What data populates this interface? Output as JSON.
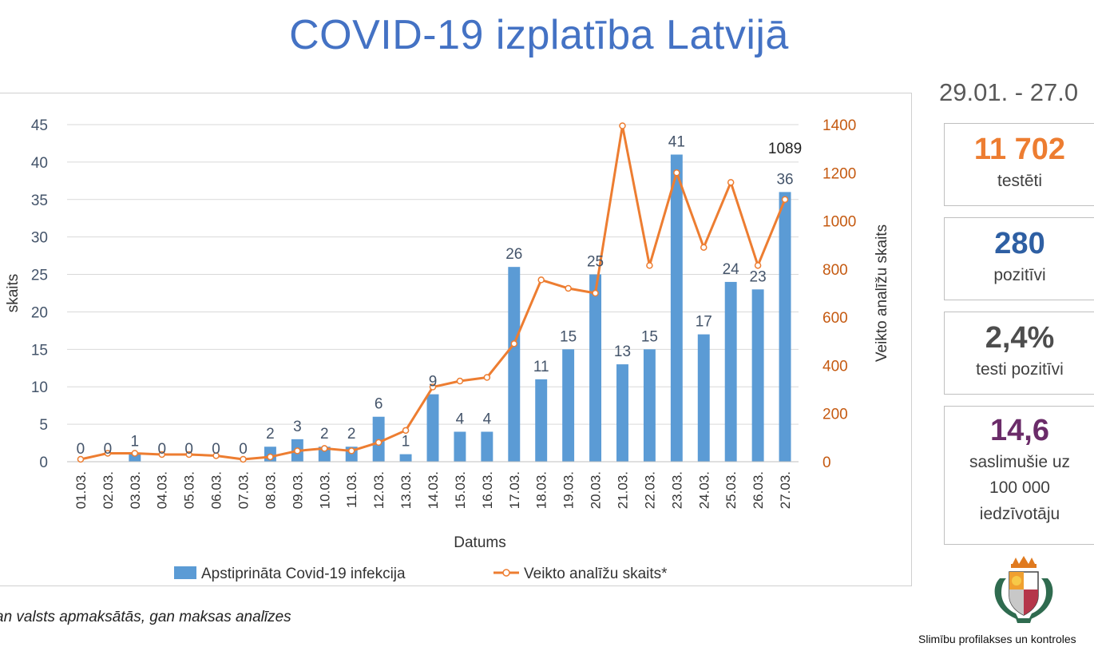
{
  "header": {
    "title": "COVID-19 izplatība Latvijā"
  },
  "footnote": "an valsts apmaksātās, gan maksas analīzes",
  "side_panel": {
    "date_range": "29.01. - 27.0",
    "stats": [
      {
        "value": "11 702",
        "label_lines": [
          "testēti"
        ],
        "color": "#ed7d31"
      },
      {
        "value": "280",
        "label_lines": [
          "pozitīvi"
        ],
        "color": "#2e5fa3"
      },
      {
        "value": "2,4%",
        "label_lines": [
          "testi pozitīvi"
        ],
        "color": "#4d4d4d"
      },
      {
        "value": "14,6",
        "label_lines": [
          "saslimušie uz",
          "100 000",
          "iedzīvotāju"
        ],
        "color": "#6b2c69"
      }
    ],
    "agency": "Slimību profilakses un kontroles"
  },
  "colors": {
    "bar": "#5b9bd5",
    "line": "#ed7d31",
    "title": "#4472c4",
    "axis_left": "#44546a",
    "axis_right": "#c55a11"
  },
  "chart_data": {
    "type": "bar",
    "categories": [
      "01.03.",
      "02.03.",
      "03.03.",
      "04.03.",
      "05.03.",
      "06.03.",
      "07.03.",
      "08.03.",
      "09.03.",
      "10.03.",
      "11.03.",
      "12.03.",
      "13.03.",
      "14.03.",
      "15.03.",
      "16.03.",
      "17.03.",
      "18.03.",
      "19.03.",
      "20.03.",
      "21.03.",
      "22.03.",
      "23.03.",
      "24.03.",
      "25.03.",
      "26.03.",
      "27.03."
    ],
    "series": [
      {
        "name": "Apstiprināta Covid-19 infekcija",
        "type": "bar",
        "axis": "left",
        "values": [
          0,
          0,
          1,
          0,
          0,
          0,
          0,
          2,
          3,
          2,
          2,
          6,
          1,
          9,
          4,
          4,
          26,
          11,
          15,
          25,
          13,
          15,
          41,
          17,
          24,
          23,
          36
        ],
        "data_labels": [
          "0",
          "0",
          "1",
          "0",
          "0",
          "0",
          "0",
          "2",
          "3",
          "2",
          "2",
          "6",
          "1",
          "9",
          "4",
          "4",
          "26",
          "11",
          "15",
          "25",
          "13",
          "15",
          "41",
          "17",
          "24",
          "23",
          "36"
        ]
      },
      {
        "name": "Veikto analīžu skaits*",
        "type": "line",
        "axis": "right",
        "values": [
          10,
          35,
          35,
          30,
          30,
          25,
          10,
          20,
          45,
          55,
          45,
          80,
          130,
          310,
          335,
          350,
          490,
          755,
          720,
          700,
          1395,
          815,
          1200,
          890,
          1160,
          815,
          1089
        ],
        "data_labels": [
          "",
          "",
          "",
          "",
          "",
          "",
          "",
          "",
          "",
          "",
          "",
          "",
          "",
          "",
          "",
          "",
          "",
          "",
          "",
          "",
          "",
          "",
          "",
          "",
          "",
          "",
          "1089"
        ]
      }
    ],
    "xlabel": "Datums",
    "ylabel": "skaits",
    "y2label": "Veikto analīžu skaits",
    "ylim": [
      0,
      45
    ],
    "yticks": [
      "0",
      "5",
      "10",
      "15",
      "20",
      "25",
      "30",
      "35",
      "40",
      "45"
    ],
    "y2lim": [
      0,
      1400
    ],
    "y2ticks": [
      "0",
      "200",
      "400",
      "600",
      "800",
      "1000",
      "1200",
      "1400"
    ],
    "grid": true,
    "legend": "bottom"
  }
}
